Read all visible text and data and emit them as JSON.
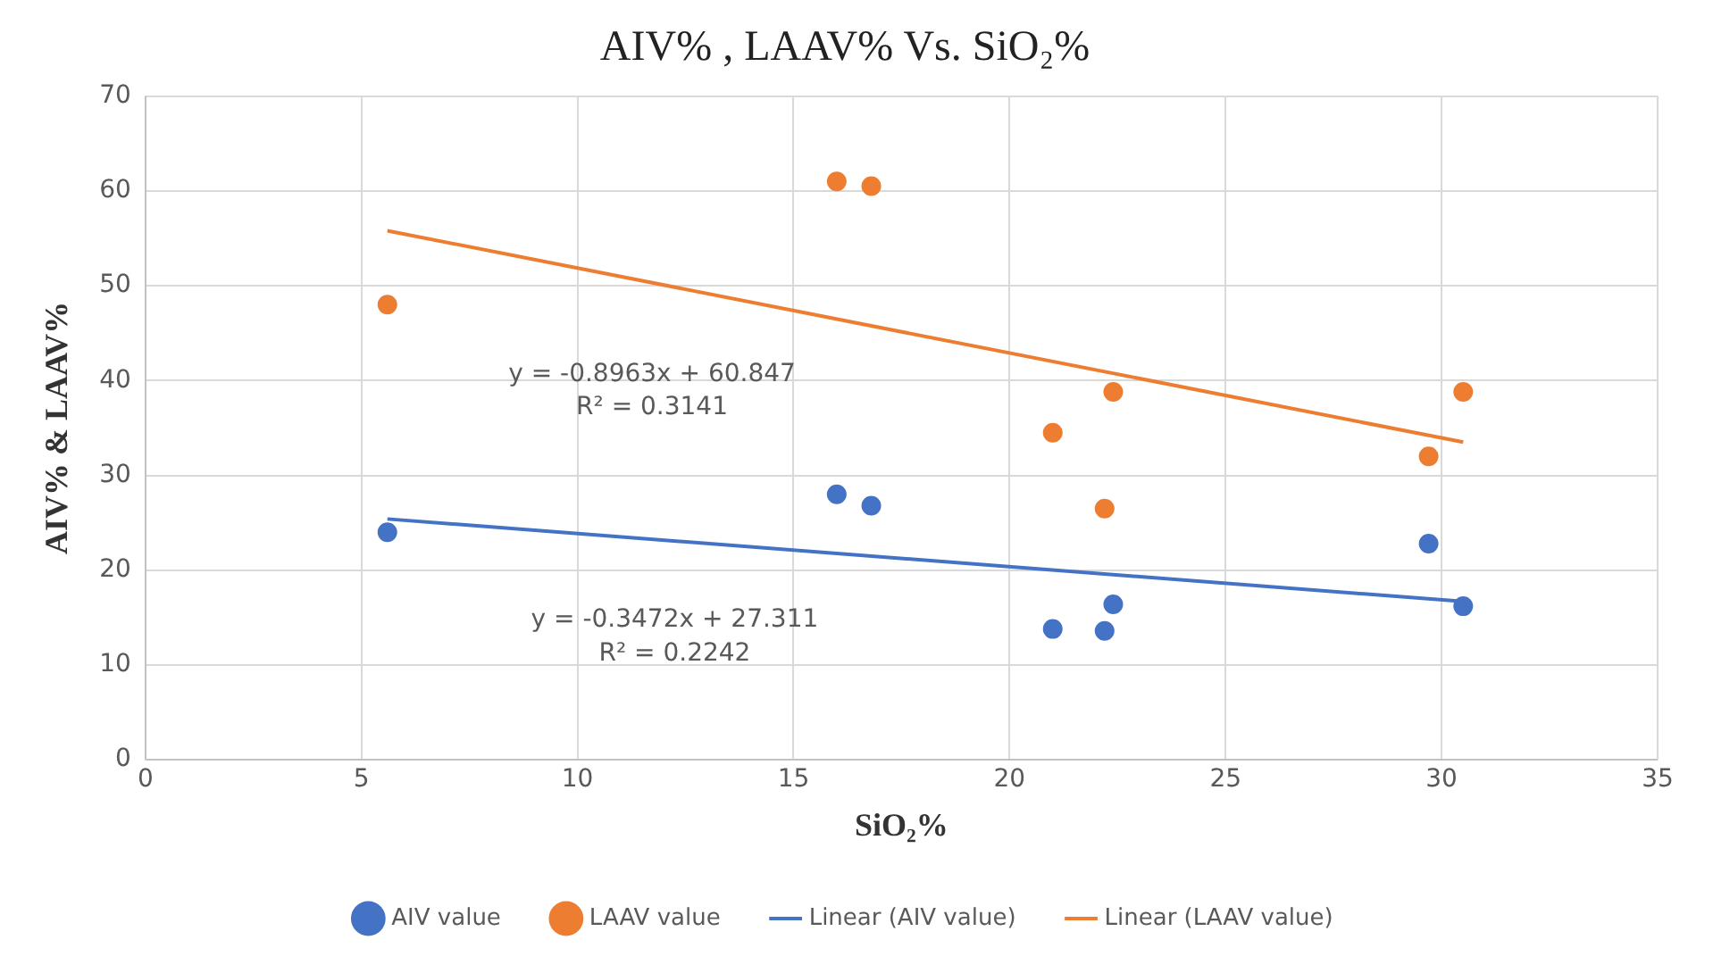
{
  "chart_data": {
    "type": "scatter",
    "title": "AIV% , LAAV% Vs. SiO₂%",
    "xlabel": "SiO₂%",
    "ylabel": "AIV% & LAAV%",
    "xlim": [
      0,
      35
    ],
    "xticks": [
      0,
      5,
      10,
      15,
      20,
      25,
      30,
      35
    ],
    "ylim": [
      0,
      70
    ],
    "yticks": [
      0,
      10,
      20,
      30,
      40,
      50,
      60,
      70
    ],
    "grid": true,
    "legend": "bottom",
    "series": [
      {
        "name": "AIV value",
        "type": "scatter",
        "marker": "circle",
        "color": "#4472c4",
        "x": [
          5.6,
          16.0,
          16.8,
          21.0,
          22.2,
          22.4,
          29.7,
          30.5
        ],
        "values": [
          24,
          28,
          26.8,
          13.8,
          13.6,
          16.4,
          22.8,
          16.2
        ]
      },
      {
        "name": "LAAV value",
        "type": "scatter",
        "marker": "circle",
        "color": "#ed7d31",
        "x": [
          5.6,
          16.0,
          16.8,
          21.0,
          22.2,
          22.4,
          29.7,
          30.5
        ],
        "values": [
          48,
          61,
          60.5,
          34.5,
          26.5,
          38.8,
          32,
          38.8
        ]
      },
      {
        "name": "Linear (AIV value)",
        "type": "line",
        "marker": "none",
        "color": "#4472c4",
        "x": [
          5.6,
          30.5
        ],
        "values": [
          25.4,
          16.7
        ]
      },
      {
        "name": "Linear (LAAV value)",
        "type": "line",
        "marker": "none",
        "color": "#ed7d31",
        "x": [
          5.6,
          30.5
        ],
        "values": [
          55.8,
          33.5
        ]
      }
    ],
    "annotations": [
      "y = -0.8963x + 60.847",
      "R² = 0.3141",
      "y = -0.3472x + 27.311",
      "R² = 0.2242"
    ]
  }
}
